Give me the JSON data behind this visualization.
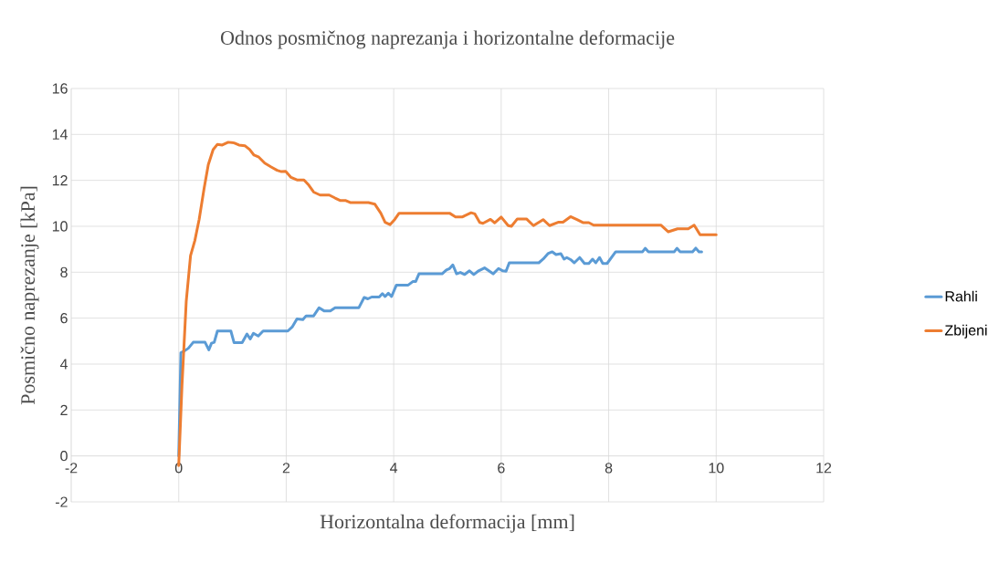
{
  "chart_data": {
    "type": "line",
    "title": "Odnos posmičnog naprezanja i horizontalne deformacije",
    "xlabel": "Horizontalna deformacija [mm]",
    "ylabel": "Posmično naprezanje [kPa]",
    "xlim": [
      -2,
      12
    ],
    "ylim": [
      -2,
      16
    ],
    "xticks": [
      -2,
      0,
      2,
      4,
      6,
      8,
      10,
      12
    ],
    "yticks": [
      -2,
      0,
      2,
      4,
      6,
      8,
      10,
      12,
      14,
      16
    ],
    "grid": true,
    "legend": "right",
    "marker": "none",
    "line_style": "solid",
    "series": [
      {
        "name": "Rahli",
        "color": "#5b9bd5",
        "x": [
          0,
          0.04,
          0.1,
          0.18,
          0.27,
          0.49,
          0.56,
          0.61,
          0.66,
          0.72,
          0.97,
          1.03,
          1.18,
          1.27,
          1.33,
          1.39,
          1.48,
          1.57,
          2.03,
          2.11,
          2.2,
          2.31,
          2.37,
          2.51,
          2.61,
          2.71,
          2.82,
          2.91,
          3.35,
          3.45,
          3.52,
          3.59,
          3.73,
          3.79,
          3.84,
          3.9,
          3.96,
          4.05,
          4.27,
          4.36,
          4.41,
          4.47,
          4.9,
          4.98,
          5.04,
          5.1,
          5.17,
          5.24,
          5.32,
          5.41,
          5.49,
          5.58,
          5.69,
          5.85,
          5.95,
          6.03,
          6.09,
          6.15,
          6.7,
          6.78,
          6.87,
          6.95,
          7.02,
          7.11,
          7.17,
          7.22,
          7.29,
          7.36,
          7.46,
          7.55,
          7.63,
          7.7,
          7.76,
          7.83,
          7.89,
          7.97,
          8.13,
          8.63,
          8.68,
          8.74,
          9.22,
          9.27,
          9.33,
          9.56,
          9.62,
          9.68,
          9.73
        ],
        "values": [
          0,
          4.49,
          4.56,
          4.69,
          4.95,
          4.95,
          4.62,
          4.91,
          4.95,
          5.44,
          5.44,
          4.93,
          4.93,
          5.31,
          5.09,
          5.34,
          5.22,
          5.44,
          5.44,
          5.61,
          5.97,
          5.94,
          6.1,
          6.1,
          6.45,
          6.31,
          6.31,
          6.45,
          6.45,
          6.9,
          6.84,
          6.92,
          6.92,
          7.07,
          6.94,
          7.09,
          6.94,
          7.44,
          7.44,
          7.6,
          7.6,
          7.93,
          7.93,
          8.1,
          8.16,
          8.32,
          7.93,
          7.99,
          7.9,
          8.06,
          7.9,
          8.06,
          8.19,
          7.93,
          8.16,
          8.06,
          8.04,
          8.41,
          8.41,
          8.57,
          8.81,
          8.89,
          8.77,
          8.81,
          8.57,
          8.64,
          8.55,
          8.41,
          8.64,
          8.38,
          8.38,
          8.57,
          8.41,
          8.64,
          8.38,
          8.38,
          8.89,
          8.89,
          9.04,
          8.89,
          8.89,
          9.04,
          8.89,
          8.89,
          9.05,
          8.89,
          8.89
        ]
      },
      {
        "name": "Zbijeni",
        "color": "#ed7d31",
        "x": [
          0,
          0.06,
          0.14,
          0.22,
          0.3,
          0.38,
          0.47,
          0.55,
          0.64,
          0.72,
          0.81,
          0.92,
          1.03,
          1.12,
          1.23,
          1.32,
          1.4,
          1.49,
          1.6,
          1.72,
          1.83,
          1.91,
          1.99,
          2.09,
          2.2,
          2.33,
          2.41,
          2.51,
          2.63,
          2.8,
          2.91,
          3.01,
          3.11,
          3.2,
          3.53,
          3.65,
          3.76,
          3.84,
          3.93,
          4.02,
          4.1,
          5.04,
          5.15,
          5.28,
          5.44,
          5.51,
          5.6,
          5.66,
          5.8,
          5.88,
          6.0,
          6.13,
          6.19,
          6.3,
          6.47,
          6.6,
          6.78,
          6.9,
          7.07,
          7.15,
          7.29,
          7.41,
          7.52,
          7.63,
          7.72,
          8.97,
          9.11,
          9.28,
          9.48,
          9.59,
          9.7,
          10.0
        ],
        "values": [
          -0.42,
          3.04,
          6.74,
          8.72,
          9.38,
          10.3,
          11.62,
          12.68,
          13.34,
          13.57,
          13.54,
          13.66,
          13.63,
          13.54,
          13.51,
          13.34,
          13.1,
          13.01,
          12.75,
          12.58,
          12.44,
          12.38,
          12.39,
          12.13,
          12.02,
          12.02,
          11.82,
          11.49,
          11.36,
          11.36,
          11.23,
          11.12,
          11.12,
          11.03,
          11.03,
          10.96,
          10.57,
          10.17,
          10.07,
          10.3,
          10.57,
          10.57,
          10.41,
          10.41,
          10.59,
          10.54,
          10.17,
          10.13,
          10.3,
          10.15,
          10.4,
          10.03,
          10.0,
          10.32,
          10.32,
          10.03,
          10.29,
          10.03,
          10.18,
          10.18,
          10.42,
          10.29,
          10.16,
          10.16,
          10.05,
          10.05,
          9.76,
          9.89,
          9.89,
          10.05,
          9.63,
          9.63
        ]
      }
    ]
  }
}
